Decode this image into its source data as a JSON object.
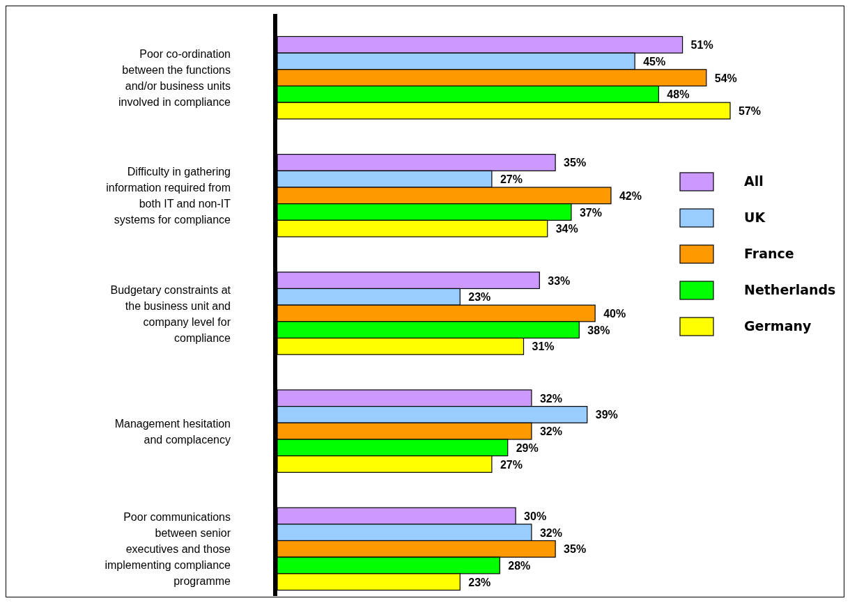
{
  "chart_data": {
    "type": "bar",
    "orientation": "horizontal",
    "categories": [
      "Poor co-ordination\nbetween the functions\nand/or business units\ninvolved in compliance",
      "Difficulty in gathering\ninformation required from\nboth IT and non-IT\nsystems for compliance",
      "Budgetary constraints at\nthe business unit and\ncompany level for\ncompliance",
      "Management hesitation\nand complacency",
      "Poor communications\nbetween senior\nexecutives and those\nimplementing compliance\nprogramme"
    ],
    "series": [
      {
        "name": "All",
        "color": "#cc99ff",
        "values": [
          51,
          35,
          33,
          32,
          30
        ],
        "value_labels": [
          "51%",
          "35%",
          "33%",
          "32%",
          "30%"
        ]
      },
      {
        "name": "UK",
        "color": "#99ccff",
        "values": [
          45,
          27,
          23,
          39,
          32
        ],
        "value_labels": [
          "45%",
          "27%",
          "23%",
          "39%",
          "32%"
        ]
      },
      {
        "name": "France",
        "color": "#ff9900",
        "values": [
          54,
          42,
          40,
          32,
          35
        ],
        "value_labels": [
          "54%",
          "42%",
          "40%",
          "32%",
          "35%"
        ]
      },
      {
        "name": "Netherlands",
        "color": "#00ff00",
        "values": [
          48,
          37,
          38,
          29,
          28
        ],
        "value_labels": [
          "48%",
          "37%",
          "38%",
          "29%",
          "28%"
        ]
      },
      {
        "name": "Germany",
        "color": "#ffff00",
        "values": [
          57,
          34,
          31,
          27,
          23
        ],
        "value_labels": [
          "57%",
          "34%",
          "31%",
          "27%",
          "23%"
        ]
      }
    ],
    "legend": "right"
  }
}
